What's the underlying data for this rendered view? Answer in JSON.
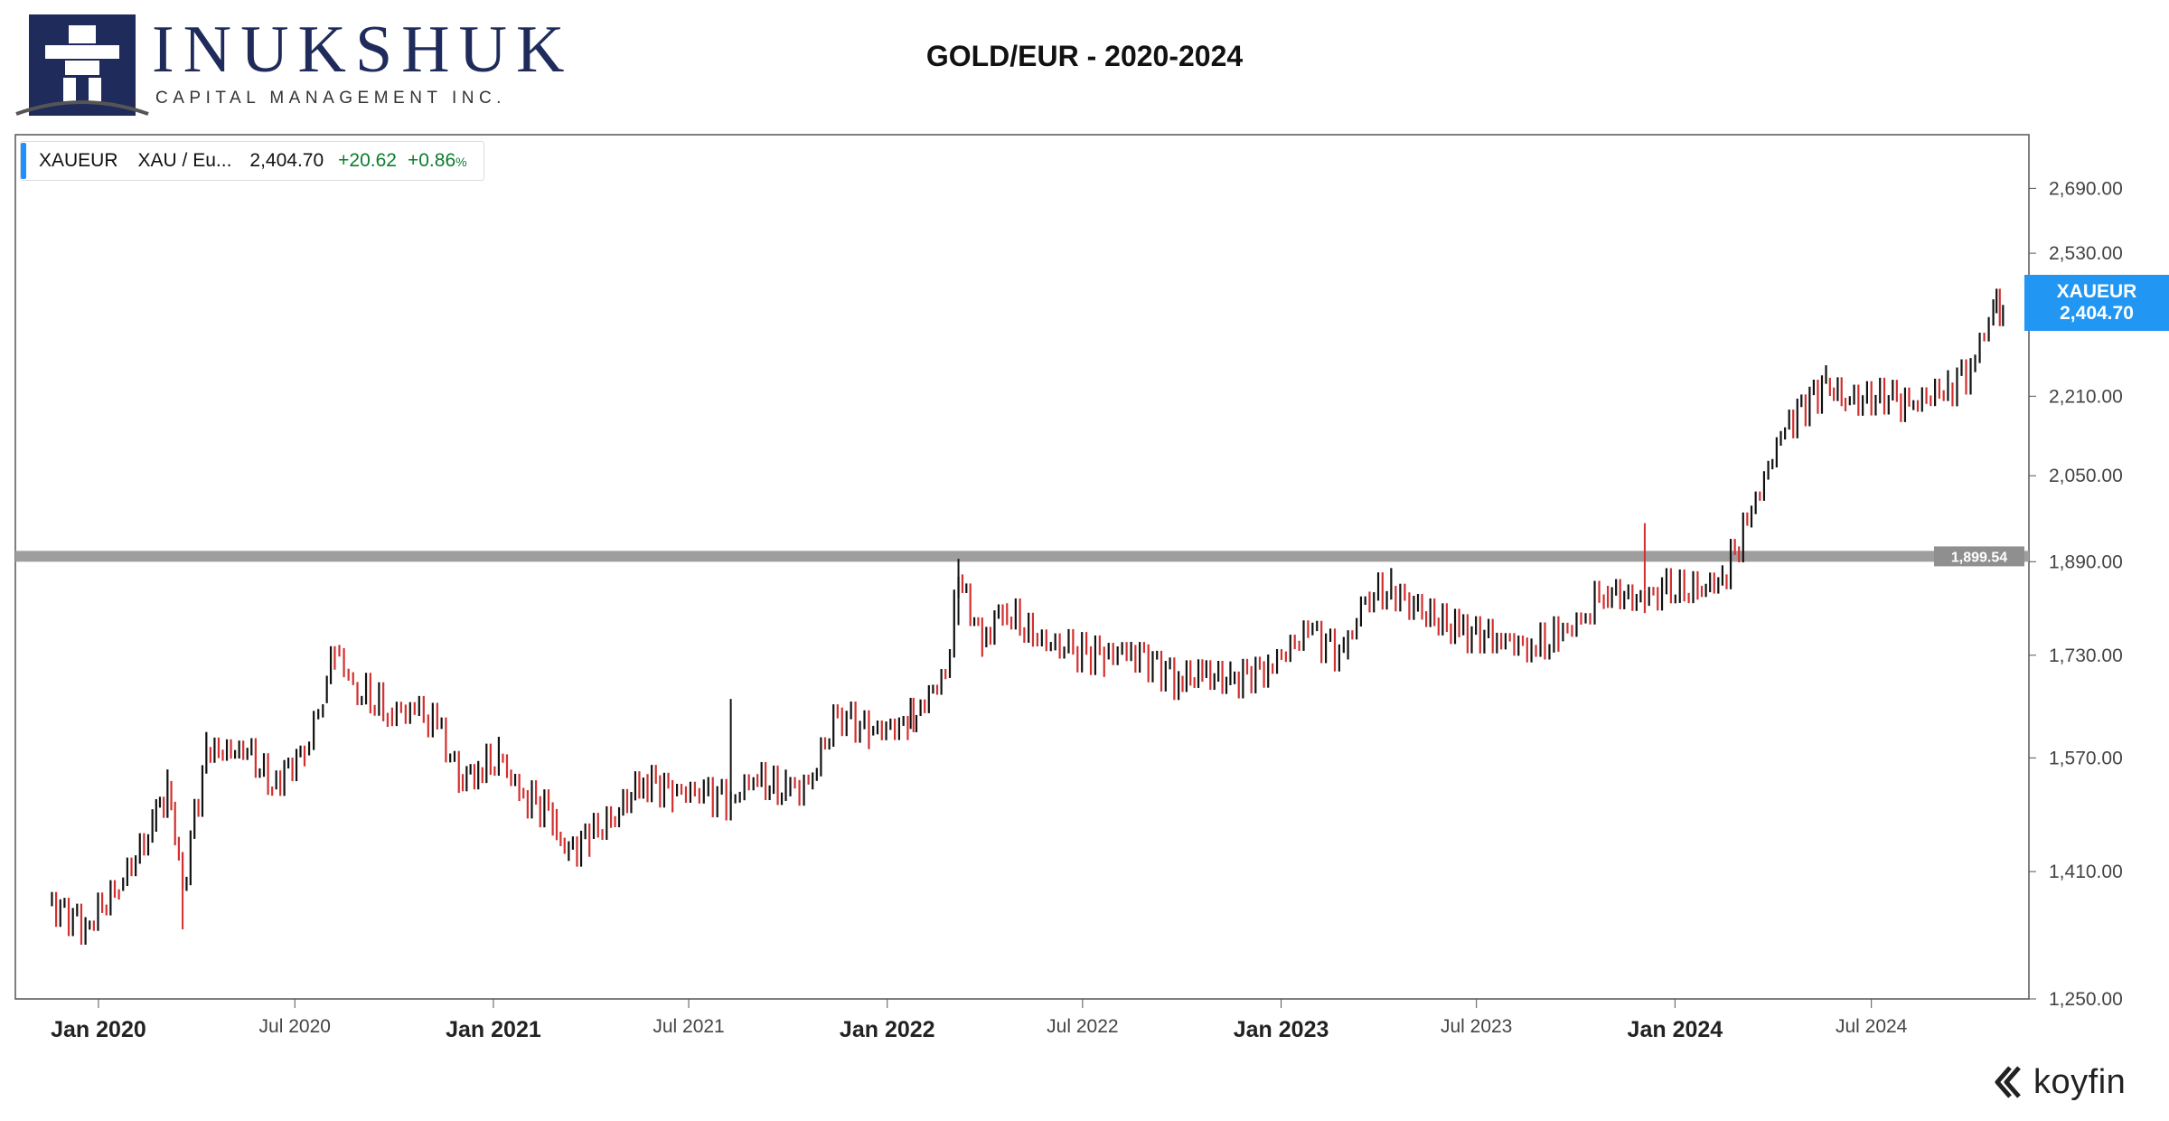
{
  "header": {
    "logo_name": "INUKSHUK",
    "logo_subtitle": "CAPITAL MANAGEMENT INC.",
    "title": "GOLD/EUR - 2020-2024"
  },
  "legend": {
    "ticker": "XAUEUR",
    "name": "XAU / Eu...",
    "price": "2,404.70",
    "change": "+20.62",
    "change_pct": "+0.86",
    "pct_sign": "%"
  },
  "price_tag": {
    "ticker": "XAUEUR",
    "price": "2,404.70"
  },
  "branding": {
    "name": "koyfin"
  },
  "colors": {
    "accent": "#2196f3",
    "up": "#111111",
    "down": "#d32f2f",
    "positive": "#0a7d2c",
    "level_line": "#9e9e9e"
  },
  "chart_data": {
    "type": "line",
    "title": "GOLD/EUR - 2020-2024",
    "series": [
      {
        "name": "XAUEUR",
        "x": [
          "2019-11-15",
          "2019-12-20",
          "2020-01-20",
          "2020-02-20",
          "2020-03-05",
          "2020-03-19",
          "2020-04-10",
          "2020-05-18",
          "2020-06-10",
          "2020-07-10",
          "2020-07-27",
          "2020-08-07",
          "2020-08-24",
          "2020-09-25",
          "2020-10-20",
          "2020-11-10",
          "2020-11-30",
          "2020-12-18",
          "2021-01-06",
          "2021-01-25",
          "2021-02-25",
          "2021-03-08",
          "2021-03-31",
          "2021-04-20",
          "2021-05-20",
          "2021-06-16",
          "2021-07-15",
          "2021-08-09",
          "2021-08-30",
          "2021-09-29",
          "2021-10-20",
          "2021-11-16",
          "2021-12-15",
          "2022-01-20",
          "2022-01-28",
          "2022-02-24",
          "2022-03-08",
          "2022-03-30",
          "2022-04-18",
          "2022-05-16",
          "2022-06-14",
          "2022-07-21",
          "2022-08-15",
          "2022-09-28",
          "2022-10-20",
          "2022-11-15",
          "2022-12-20",
          "2023-01-26",
          "2023-02-28",
          "2023-03-20",
          "2023-04-13",
          "2023-05-04",
          "2023-06-15",
          "2023-07-20",
          "2023-08-21",
          "2023-09-15",
          "2023-10-06",
          "2023-10-27",
          "2023-12-04",
          "2023-12-20",
          "2024-01-22",
          "2024-02-14",
          "2024-03-08",
          "2024-04-12",
          "2024-05-20",
          "2024-06-07",
          "2024-07-17",
          "2024-08-05",
          "2024-09-10",
          "2024-10-01",
          "2024-10-22",
          "2024-10-31"
        ],
        "values": [
          1370,
          1340,
          1390,
          1470,
          1530,
          1390,
          1580,
          1580,
          1530,
          1580,
          1660,
          1740,
          1680,
          1640,
          1640,
          1620,
          1540,
          1550,
          1570,
          1520,
          1490,
          1430,
          1460,
          1480,
          1540,
          1520,
          1520,
          1510,
          1540,
          1520,
          1530,
          1640,
          1610,
          1620,
          1640,
          1700,
          1860,
          1750,
          1810,
          1760,
          1740,
          1730,
          1740,
          1690,
          1700,
          1690,
          1710,
          1770,
          1730,
          1830,
          1840,
          1810,
          1770,
          1760,
          1740,
          1760,
          1790,
          1840,
          1820,
          1840,
          1840,
          1860,
          1960,
          2150,
          2240,
          2200,
          2210,
          2190,
          2230,
          2270,
          2400,
          2405
        ]
      }
    ],
    "xlabel": "",
    "ylabel": "",
    "x_tick_labels": [
      "Jan 2020",
      "Jul 2020",
      "Jan 2021",
      "Jul 2021",
      "Jan 2022",
      "Jul 2022",
      "Jan 2023",
      "Jul 2023",
      "Jan 2024",
      "Jul 2024"
    ],
    "x_tick_dates": [
      "2020-01-01",
      "2020-07-01",
      "2021-01-01",
      "2021-07-01",
      "2022-01-01",
      "2022-07-01",
      "2023-01-01",
      "2023-07-01",
      "2024-01-01",
      "2024-07-01"
    ],
    "major_x_ticks": [
      "Jan 2020",
      "Jan 2021",
      "Jan 2022",
      "Jan 2023",
      "Jan 2024"
    ],
    "y_tick_values": [
      1250,
      1410,
      1570,
      1730,
      1890,
      2050,
      2210,
      2530,
      2690
    ],
    "y_tick_labels": [
      "1,250.00",
      "1,410.00",
      "1,570.00",
      "1,730.00",
      "1,890.00",
      "2,050.00",
      "2,210.00",
      "2,530.00",
      "2,690.00"
    ],
    "xlim": [
      "2019-10-16",
      "2024-11-24"
    ],
    "ylim": [
      1250,
      2830
    ],
    "y_scale": "log",
    "horizontal_line": {
      "value": 1899.54,
      "label": "1,899.54"
    },
    "spikes": [
      {
        "x": "2021-08-09",
        "high": 1660,
        "low": 1510,
        "color": "up"
      },
      {
        "x": "2022-03-08",
        "high": 1895,
        "low": 1780,
        "color": "up"
      },
      {
        "x": "2023-12-04",
        "high": 1960,
        "low": 1840,
        "color": "down"
      },
      {
        "x": "2020-03-19",
        "high": 1420,
        "low": 1335,
        "color": "down"
      }
    ],
    "grid": false,
    "legend_position": "top-left"
  }
}
